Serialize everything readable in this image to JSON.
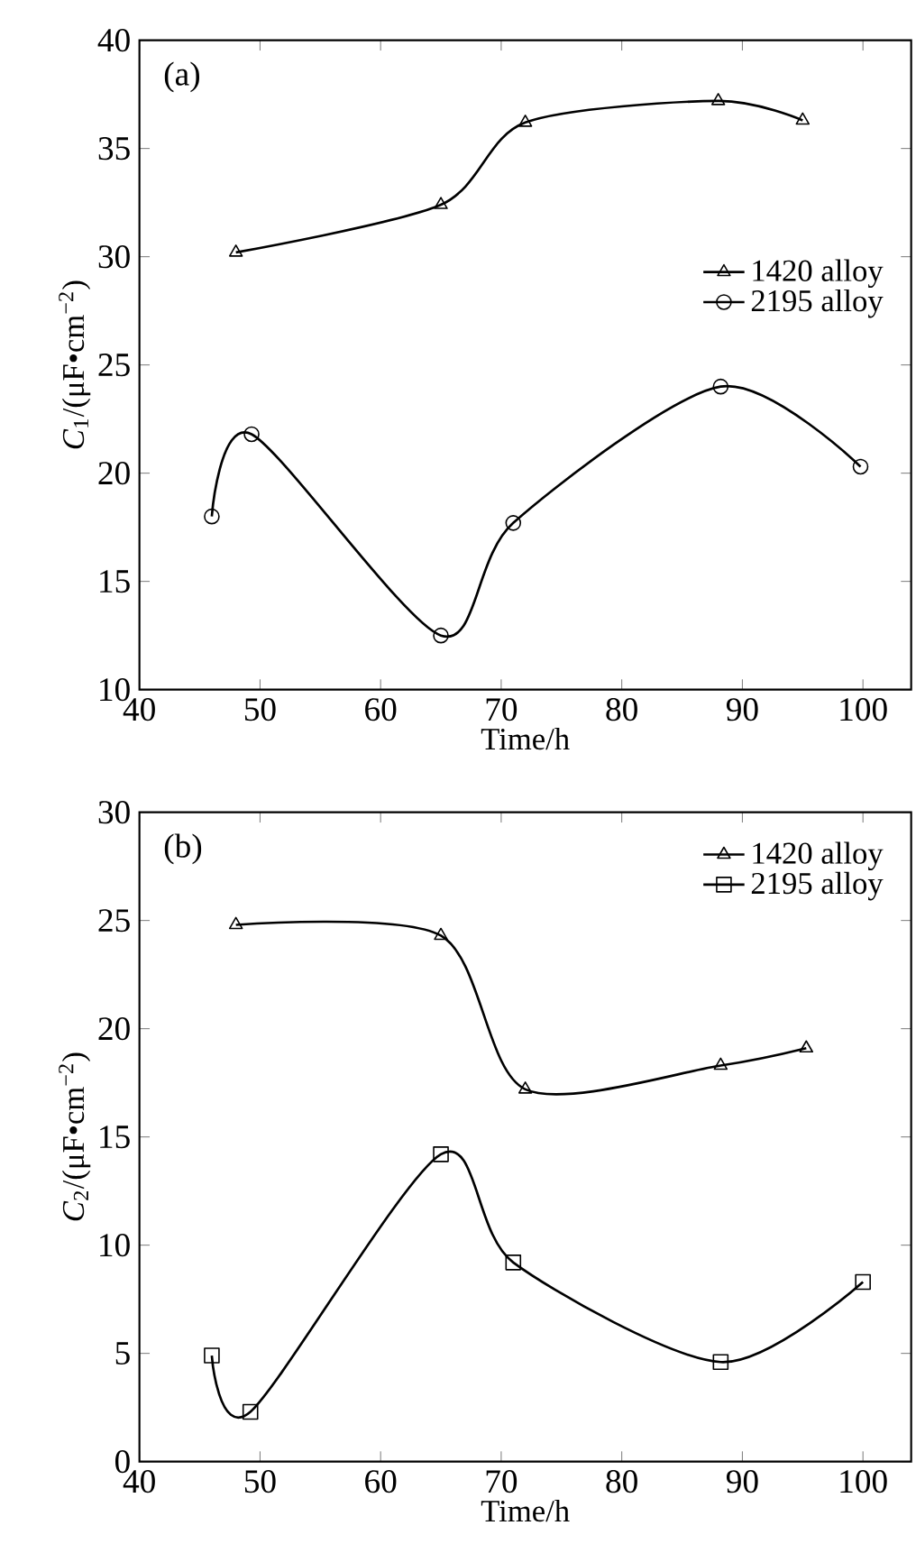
{
  "chart_data": [
    {
      "type": "line",
      "xlabel": "Time/h",
      "ylabel": "*C*$_{1}$/(μF•cm$^{−2}$)",
      "annotations": [
        "(a)"
      ],
      "xlim": [
        40,
        104
      ],
      "ylim": [
        10,
        40
      ],
      "xticks": [
        40,
        50,
        60,
        70,
        80,
        90,
        100
      ],
      "yticks": [
        10,
        15,
        20,
        25,
        30,
        35,
        40
      ],
      "legend": "right",
      "series": [
        {
          "name": "1420 alloy",
          "color": "#000000",
          "marker": "triangle",
          "x": [
            48,
            65,
            72,
            88,
            95
          ],
          "values": [
            30.2,
            32.4,
            36.2,
            37.2,
            36.3
          ]
        },
        {
          "name": "2195 alloy",
          "color": "#000000",
          "marker": "circle",
          "x": [
            46,
            49.3,
            65,
            71,
            88.2,
            99.8
          ],
          "values": [
            18,
            21.8,
            12.5,
            17.7,
            24,
            20.3
          ]
        }
      ]
    },
    {
      "type": "line",
      "xlabel": "Time/h",
      "ylabel": "*C*$_{2}$/(μF•cm$^{−2}$)",
      "annotations": [
        "(b)"
      ],
      "xlim": [
        40,
        104
      ],
      "ylim": [
        0,
        30
      ],
      "xticks": [
        40,
        50,
        60,
        70,
        80,
        90,
        100
      ],
      "yticks": [
        0,
        5,
        10,
        15,
        20,
        25,
        30
      ],
      "legend": "top right",
      "series": [
        {
          "name": "1420 alloy",
          "color": "#000000",
          "marker": "triangle",
          "x": [
            48,
            65,
            72,
            88.2,
            95.3
          ],
          "values": [
            24.8,
            24.3,
            17.2,
            18.3,
            19.1
          ]
        },
        {
          "name": "2195 alloy",
          "color": "#000000",
          "marker": "square",
          "x": [
            46,
            49.2,
            65,
            71,
            88.2,
            100
          ],
          "values": [
            4.9,
            2.3,
            14.2,
            9.2,
            4.6,
            8.3
          ]
        }
      ]
    }
  ]
}
